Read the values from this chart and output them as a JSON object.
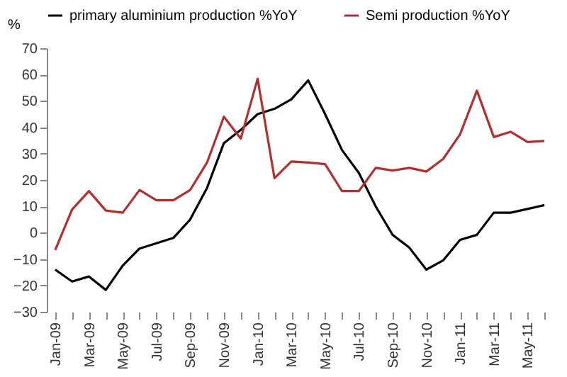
{
  "chart_data": {
    "type": "line",
    "ylabel": "%",
    "categories": [
      "Jan-09",
      null,
      "Mar-09",
      null,
      "May-09",
      null,
      "Jul-09",
      null,
      "Sep-09",
      null,
      "Nov-09",
      null,
      "Jan-10",
      null,
      "Mar-10",
      null,
      "May-10",
      null,
      "Jul-10",
      null,
      "Sep-10",
      null,
      "Nov-10",
      null,
      "Jan-11",
      null,
      "Mar-11",
      null,
      "May-11",
      null
    ],
    "series": [
      {
        "name": "primary aluminium production %YoY",
        "color": "#000000",
        "values": [
          -14,
          -18.5,
          -16.6,
          -21.7,
          -12.5,
          -6,
          -4,
          -2,
          5,
          17,
          34,
          39,
          45,
          47,
          50.6,
          57.8,
          45,
          31.4,
          22.7,
          10,
          -0.8,
          -5.7,
          -14,
          -10.5,
          -2.7,
          -0.8,
          7.6,
          7.6,
          9,
          10.5
        ]
      },
      {
        "name": "Semi production %YoY",
        "color": "#b03030",
        "values": [
          -6.6,
          8.8,
          15.8,
          8.4,
          7.6,
          16.2,
          12.3,
          12.3,
          16.2,
          26.6,
          44,
          35.7,
          58.4,
          20.7,
          27,
          26.6,
          26,
          15.8,
          15.8,
          24.6,
          23.6,
          24.6,
          23.2,
          28,
          37.3,
          53.9,
          36.3,
          38.3,
          34.4,
          34.8
        ]
      }
    ],
    "ylim": [
      -30,
      70
    ],
    "yticks": [
      -30,
      -20,
      -10,
      0,
      10,
      20,
      30,
      40,
      50,
      60,
      70
    ],
    "legend": "top",
    "grid": false,
    "marker": "none",
    "line_style": "solid"
  }
}
